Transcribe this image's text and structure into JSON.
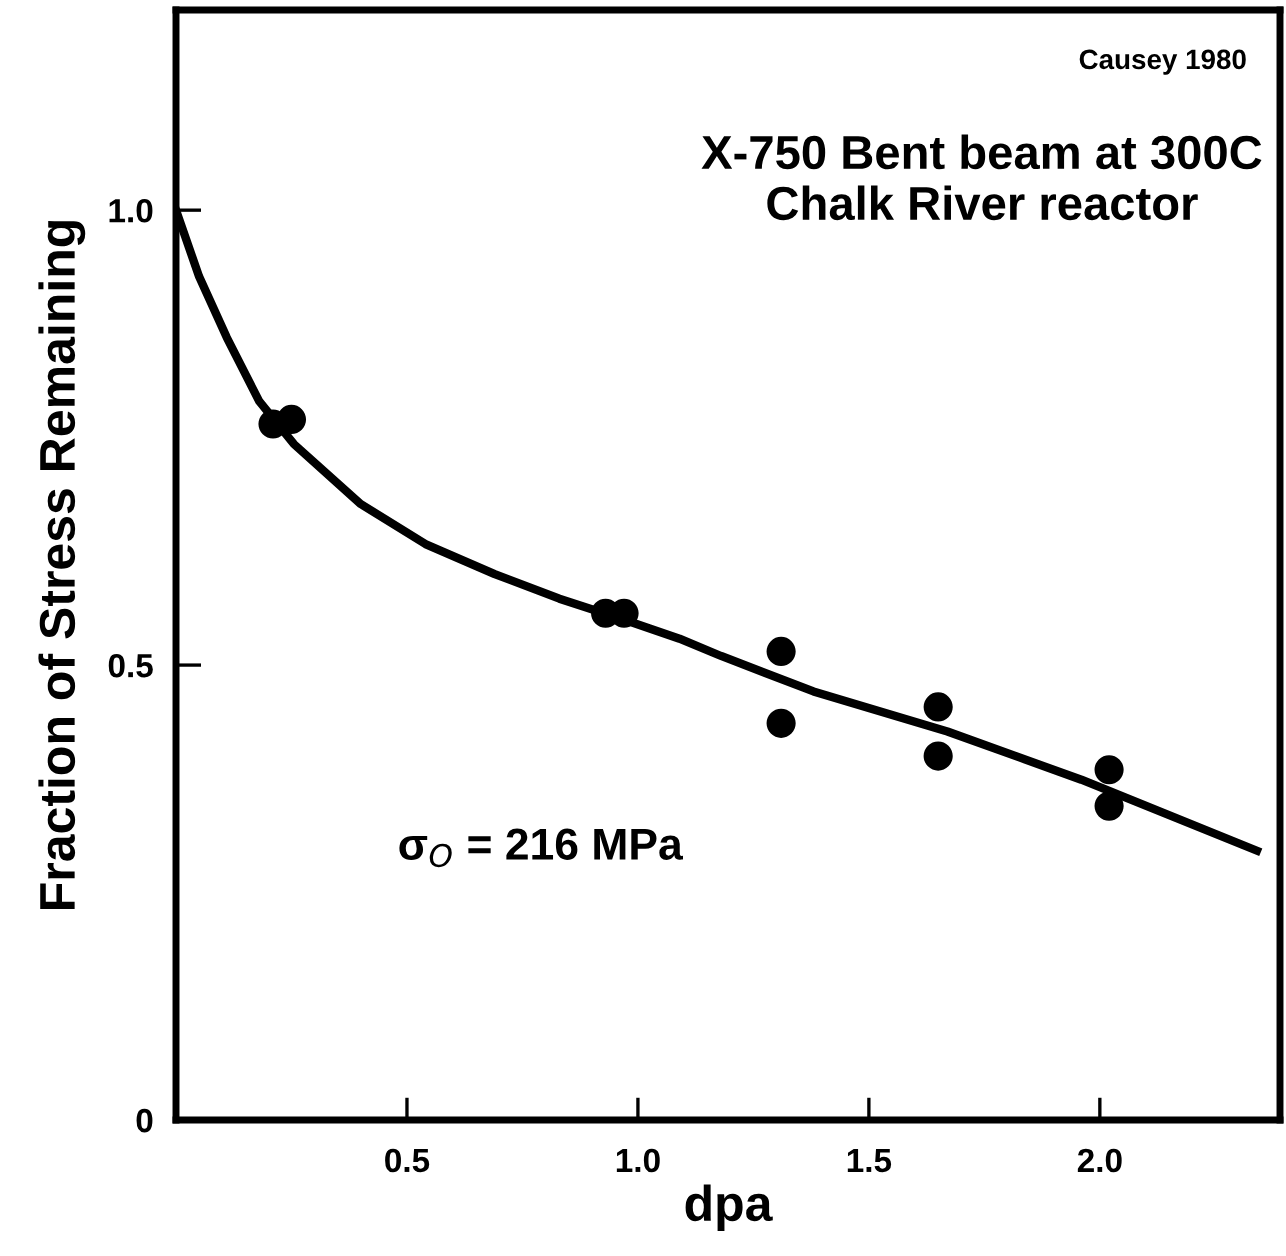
{
  "chart_data": {
    "type": "scatter",
    "xlabel": "dpa",
    "ylabel": "Fraction of Stress Remaining",
    "xlim": [
      0,
      2.39
    ],
    "ylim": [
      0,
      1.22
    ],
    "xticks": [
      0.5,
      {
        "value": 1.0,
        "label": "1.0"
      },
      1.5,
      {
        "value": 2.0,
        "label": "2.0"
      }
    ],
    "yticks": [
      0,
      0.5,
      {
        "value": 1.0,
        "label": "1.0"
      }
    ],
    "grid": false,
    "legend": false,
    "annotations": [
      "Causey 1980",
      "X-750 Bent beam at 300C\nChalk River reactor",
      "σ$_{O}$ = 216 MPa"
    ],
    "series": [
      {
        "color": "#000000",
        "marker": "circle",
        "x": [
          0.21,
          0.25,
          0.93,
          0.97,
          1.31,
          1.31,
          1.65,
          1.65,
          2.02,
          2.02
        ],
        "values": [
          0.765,
          0.77,
          0.557,
          0.557,
          0.515,
          0.436,
          0.454,
          0.4,
          0.385,
          0.345
        ]
      },
      {
        "type": "line",
        "color": "#000000",
        "marker": "none",
        "line_style": "solid",
        "x": [
          0,
          0.05,
          0.11,
          0.18,
          0.255,
          0.4,
          0.54,
          0.69,
          0.83,
          0.975,
          1.09,
          1.18,
          1.38,
          1.67,
          1.96,
          2.34
        ],
        "values": [
          1.0,
          0.927,
          0.86,
          0.79,
          0.743,
          0.677,
          0.633,
          0.6,
          0.573,
          0.549,
          0.529,
          0.51,
          0.471,
          0.427,
          0.374,
          0.296
        ]
      }
    ]
  }
}
